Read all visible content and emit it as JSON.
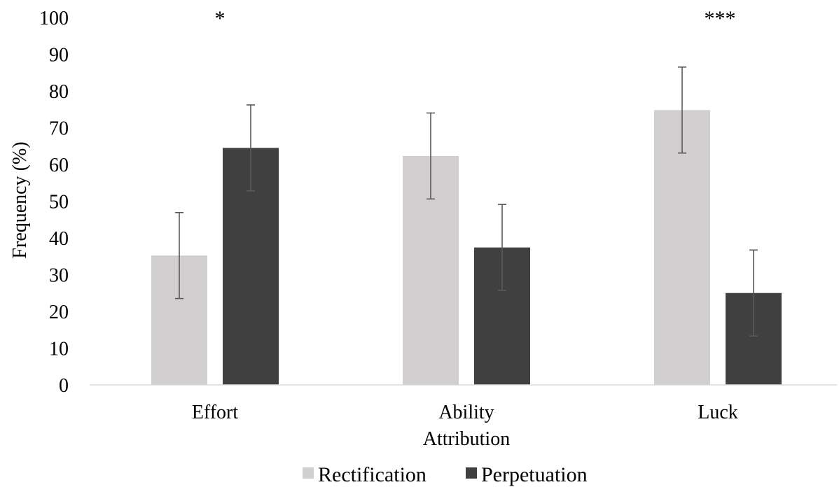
{
  "chart_data": {
    "type": "bar",
    "title": "",
    "xlabel": "Attribution",
    "ylabel": "Frequency (%)",
    "ylim": [
      0,
      100
    ],
    "yticks": [
      0,
      10,
      20,
      30,
      40,
      50,
      60,
      70,
      80,
      90,
      100
    ],
    "categories": [
      "Effort",
      "Ability",
      "Luck"
    ],
    "series": [
      {
        "name": "Rectification",
        "color": "#d0cecf",
        "values": [
          35.2,
          62.3,
          74.8
        ],
        "error": [
          11.7,
          11.7,
          11.7
        ]
      },
      {
        "name": "Perpetuation",
        "color": "#404040",
        "values": [
          64.5,
          37.4,
          25.0
        ],
        "error": [
          11.7,
          11.7,
          11.7
        ]
      }
    ],
    "annotations": [
      "*",
      "",
      "***"
    ],
    "grid": false,
    "legend_position": "bottom"
  }
}
